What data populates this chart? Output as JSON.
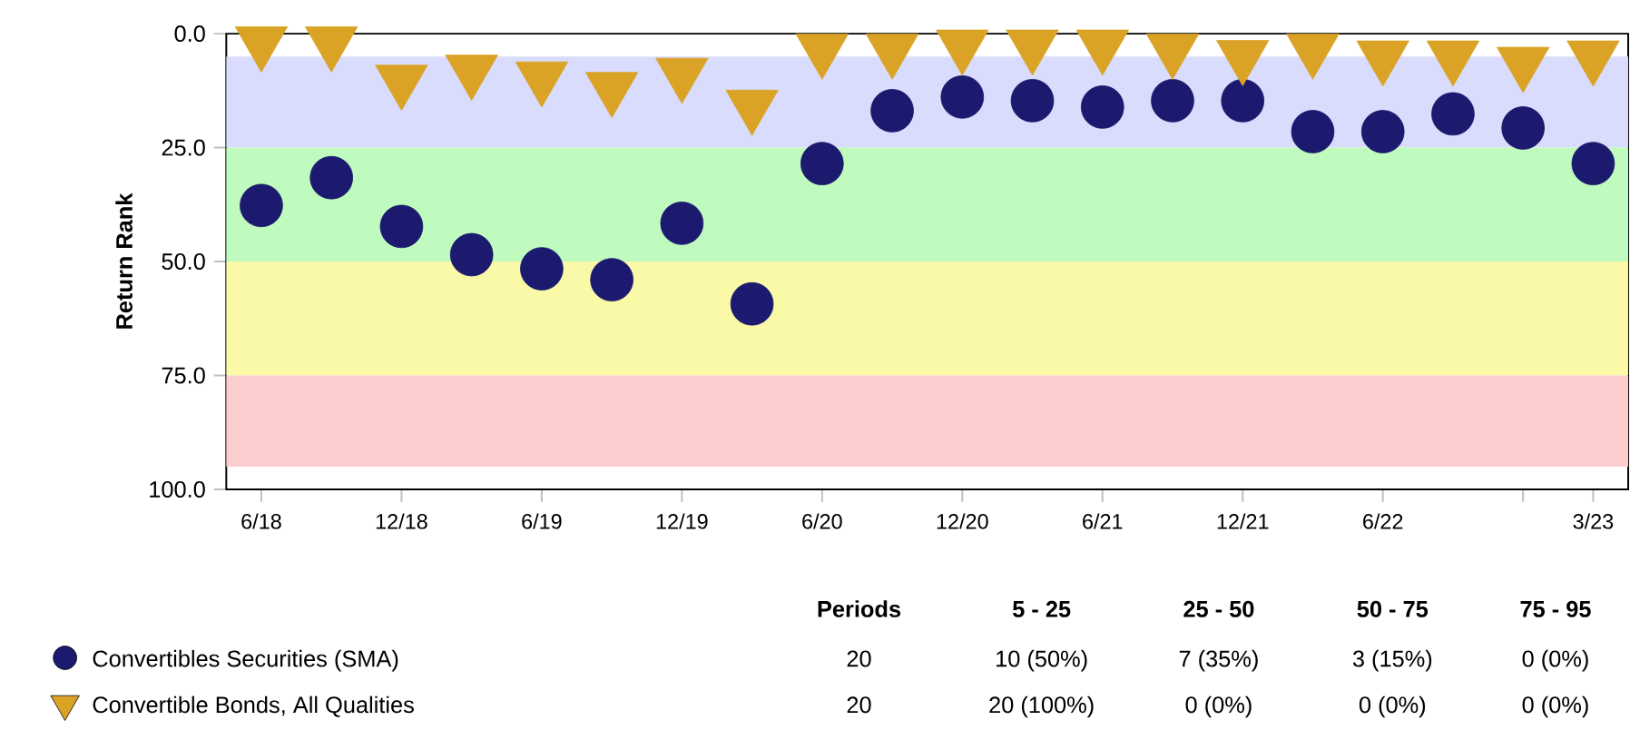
{
  "chart_data": {
    "type": "scatter",
    "ylabel": "Return Rank",
    "x": [
      "2018-06",
      "2018-09",
      "2018-12",
      "2019-03",
      "2019-06",
      "2019-09",
      "2019-12",
      "2020-03",
      "2020-06",
      "2020-09",
      "2020-12",
      "2021-03",
      "2021-06",
      "2021-09",
      "2021-12",
      "2022-03",
      "2022-06",
      "2022-09",
      "2022-12",
      "2023-03"
    ],
    "series": [
      {
        "name": "Convertibles Securities (SMA)",
        "color": "#1b1a6e",
        "marker": "circle",
        "values": [
          37.7,
          31.6,
          42.3,
          48.5,
          51.6,
          54.0,
          41.6,
          59.3,
          28.5,
          16.9,
          13.9,
          14.7,
          16.1,
          14.7,
          14.7,
          21.5,
          21.5,
          17.6,
          20.7,
          28.5
        ]
      },
      {
        "name": "Convertible Bonds, All Qualities",
        "color": "#daa325",
        "marker": "triangle",
        "values": [
          1.8,
          1.8,
          10.2,
          8.0,
          9.5,
          11.8,
          8.7,
          15.7,
          3.4,
          3.4,
          2.5,
          2.5,
          2.5,
          3.4,
          4.8,
          3.4,
          4.9,
          4.9,
          6.3,
          4.9
        ]
      }
    ],
    "xlim": [
      "2018-04-16",
      "2023-04-16"
    ],
    "xticks": [
      {
        "value": "2018-06",
        "label": "6/18"
      },
      {
        "value": "2018-12",
        "label": "12/18"
      },
      {
        "value": "2019-06",
        "label": "6/19"
      },
      {
        "value": "2019-12",
        "label": "12/19"
      },
      {
        "value": "2020-06",
        "label": "6/20"
      },
      {
        "value": "2020-12",
        "label": "12/20"
      },
      {
        "value": "2021-06",
        "label": "6/21"
      },
      {
        "value": "2021-12",
        "label": "12/21"
      },
      {
        "value": "2022-06",
        "label": "6/22"
      },
      {
        "value": "2022-12",
        "label": null
      },
      {
        "value": "2023-03",
        "label": "3/23"
      }
    ],
    "ylim": [
      100,
      0
    ],
    "yticks": [
      {
        "value": 0,
        "label": "0.0"
      },
      {
        "value": 25,
        "label": "25.0"
      },
      {
        "value": 50,
        "label": "50.0"
      },
      {
        "value": 75,
        "label": "75.0"
      },
      {
        "value": 100,
        "label": "100.0"
      }
    ],
    "bands": [
      {
        "axis": "y",
        "from": 5,
        "to": 25,
        "color": "#d9dcfc"
      },
      {
        "axis": "y",
        "from": 25,
        "to": 50,
        "color": "#bffbbf"
      },
      {
        "axis": "y",
        "from": 50,
        "to": 75,
        "color": "#f9f9a8"
      },
      {
        "axis": "y",
        "from": 75,
        "to": 95,
        "color": "#fccccf"
      }
    ],
    "grid": false,
    "legend": "bottom",
    "annotations": [
      "Periods",
      "5 - 25",
      "25 - 50",
      "50 - 75",
      "75 - 95",
      "20",
      "10 (50%)",
      "7 (35%)",
      "3 (15%)",
      "0 (0%)",
      "20",
      "20 (100%)",
      "0 (0%)",
      "0 (0%)",
      "0 (0%)"
    ]
  }
}
